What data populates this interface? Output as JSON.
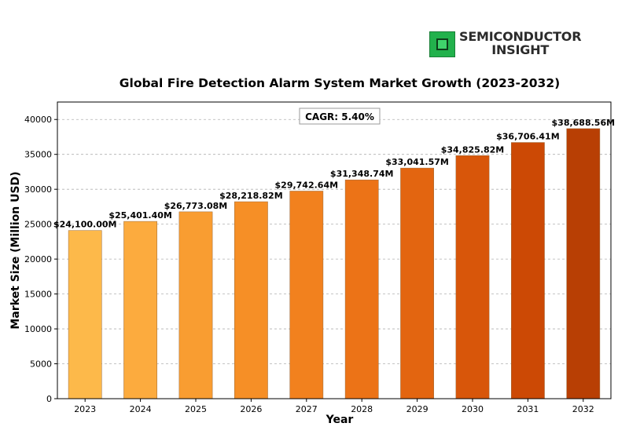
{
  "brand": {
    "line1": "SEMICONDUCTOR",
    "line2": "INSIGHT",
    "chip_color": "#22b14c"
  },
  "chart_data": {
    "type": "bar",
    "title": "Global Fire Detection Alarm System Market Growth (2023-2032)",
    "xlabel": "Year",
    "ylabel": "Market Size (Million USD)",
    "categories": [
      "2023",
      "2024",
      "2025",
      "2026",
      "2027",
      "2028",
      "2029",
      "2030",
      "2031",
      "2032"
    ],
    "values": [
      24100.0,
      25401.4,
      26773.08,
      28218.82,
      29742.64,
      31348.74,
      33041.57,
      34825.82,
      36706.41,
      38688.56
    ],
    "data_labels": [
      "$24,100.00M",
      "$25,401.40M",
      "$26,773.08M",
      "$28,218.82M",
      "$29,742.64M",
      "$31,348.74M",
      "$33,041.57M",
      "$34,825.82M",
      "$36,706.41M",
      "$38,688.56M"
    ],
    "bar_colors": [
      "#fdb94a",
      "#fcab3e",
      "#f99d31",
      "#f68f26",
      "#f2811e",
      "#ec7317",
      "#e36510",
      "#d8560a",
      "#cc4905",
      "#b83f04"
    ],
    "ylim": [
      0,
      42500
    ],
    "yticks": [
      0,
      5000,
      10000,
      15000,
      20000,
      25000,
      30000,
      35000,
      40000
    ],
    "grid": true,
    "annotation": "CAGR: 5.40%"
  }
}
